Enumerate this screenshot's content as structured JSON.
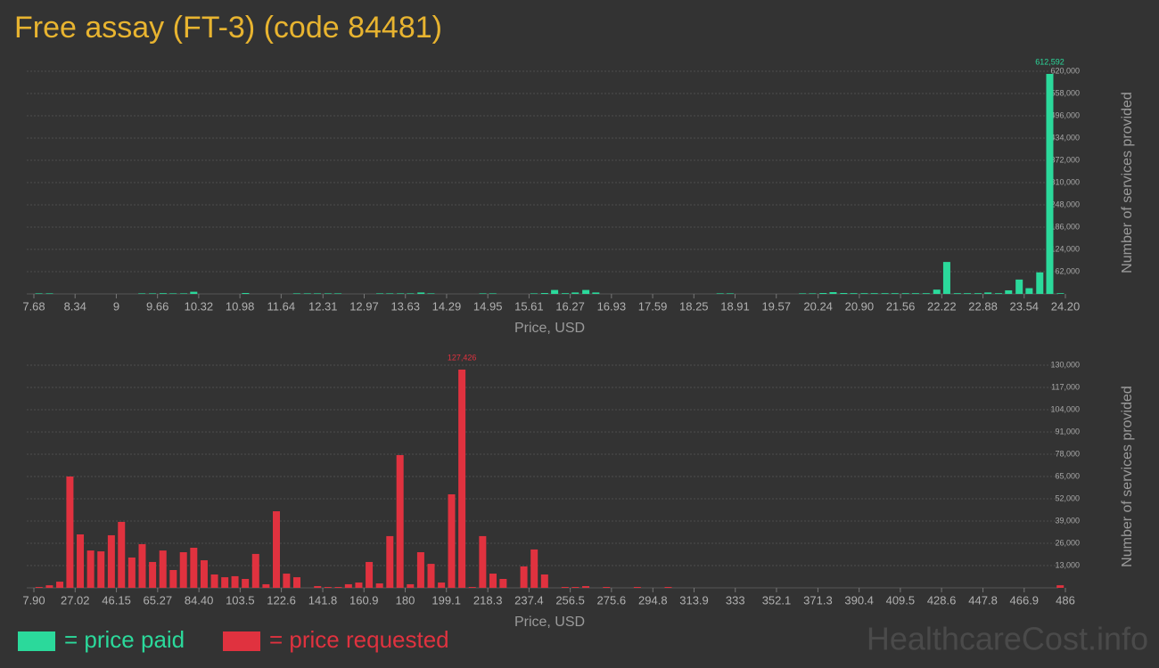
{
  "chart_data": [
    {
      "type": "bar",
      "title": "Free assay (FT-3) (code 84481)",
      "x_label": "Price, USD",
      "y_label": "Number of services provided",
      "xlim": [
        7.68,
        24.2
      ],
      "ylim": [
        0,
        620000
      ],
      "grid": true,
      "xticks": [
        7.68,
        8.34,
        9,
        9.66,
        10.32,
        10.98,
        11.64,
        12.31,
        12.97,
        13.63,
        14.29,
        14.95,
        15.61,
        16.27,
        16.93,
        17.59,
        18.25,
        18.91,
        19.57,
        20.24,
        {
          "value": 20.9,
          "label": "20.90"
        },
        21.56,
        22.22,
        22.88,
        23.54,
        {
          "value": 24.2,
          "label": "24.20"
        }
      ],
      "yticks": [
        {
          "value": 62000,
          "label": "62,000"
        },
        {
          "value": 124000,
          "label": "124,000"
        },
        {
          "value": 186000,
          "label": "186,000"
        },
        {
          "value": 248000,
          "label": "248,000"
        },
        {
          "value": 310000,
          "label": "310,000"
        },
        {
          "value": 372000,
          "label": "372,000"
        },
        {
          "value": 434000,
          "label": "434,000"
        },
        {
          "value": 496000,
          "label": "496,000"
        },
        {
          "value": 558000,
          "label": "558,000"
        },
        {
          "value": 620000,
          "label": "620,000"
        }
      ],
      "x": [
        7.76,
        7.93,
        9.41,
        9.58,
        9.75,
        9.91,
        10.08,
        10.24,
        11.07,
        11.89,
        12.06,
        12.22,
        12.39,
        12.55,
        13.22,
        13.38,
        13.55,
        13.71,
        13.88,
        14.04,
        14.87,
        15.03,
        15.69,
        15.86,
        16.02,
        16.19,
        16.35,
        16.52,
        16.68,
        18.67,
        18.83,
        19.99,
        20.15,
        20.32,
        20.48,
        20.65,
        20.81,
        20.98,
        21.14,
        21.31,
        21.47,
        21.64,
        21.8,
        21.97,
        22.14,
        22.3,
        22.47,
        22.63,
        22.8,
        22.96,
        23.13,
        23.29,
        23.46,
        23.62,
        23.79,
        23.95,
        24.12
      ],
      "series": [
        {
          "name": "= price paid",
          "color": "#2bd99b",
          "values": [
            1500,
            1500,
            1500,
            1500,
            2000,
            1500,
            1500,
            6000,
            2500,
            1500,
            1500,
            1500,
            1500,
            1500,
            1500,
            1500,
            1500,
            1500,
            4000,
            1500,
            1500,
            1500,
            1500,
            2500,
            11000,
            2000,
            4000,
            11000,
            4000,
            1500,
            1500,
            1500,
            1500,
            2500,
            5000,
            2500,
            2000,
            2000,
            2000,
            2000,
            2000,
            2000,
            2000,
            2000,
            12000,
            89000,
            2000,
            2000,
            2000,
            4000,
            2000,
            10000,
            40000,
            16000,
            60000,
            612592,
            2000
          ],
          "value_labels": [
            null,
            null,
            null,
            null,
            null,
            null,
            null,
            null,
            null,
            null,
            null,
            null,
            null,
            null,
            null,
            null,
            null,
            null,
            null,
            null,
            null,
            null,
            null,
            null,
            null,
            null,
            null,
            null,
            null,
            null,
            null,
            null,
            null,
            null,
            null,
            null,
            null,
            null,
            null,
            null,
            null,
            null,
            null,
            null,
            null,
            null,
            null,
            null,
            null,
            null,
            null,
            null,
            null,
            null,
            null,
            "612,592",
            null
          ]
        }
      ]
    },
    {
      "type": "bar",
      "x_label": "Price, USD",
      "y_label": "Number of services provided",
      "xlim": [
        7.9,
        486
      ],
      "ylim": [
        0,
        130000
      ],
      "grid": true,
      "xticks": [
        {
          "value": 7.9,
          "label": "7.90"
        },
        27.02,
        46.15,
        65.27,
        {
          "value": 84.4,
          "label": "84.40"
        },
        103.5,
        122.6,
        141.8,
        160.9,
        180,
        199.1,
        218.3,
        237.4,
        256.5,
        275.6,
        294.8,
        313.9,
        333,
        352.1,
        371.3,
        390.4,
        409.5,
        428.6,
        447.8,
        466.9,
        486
      ],
      "yticks": [
        {
          "value": 13000,
          "label": "13,000"
        },
        {
          "value": 26000,
          "label": "26,000"
        },
        {
          "value": 39000,
          "label": "39,000"
        },
        {
          "value": 52000,
          "label": "52,000"
        },
        {
          "value": 65000,
          "label": "65,000"
        },
        {
          "value": 78000,
          "label": "78,000"
        },
        {
          "value": 91000,
          "label": "91,000"
        },
        {
          "value": 104000,
          "label": "104,000"
        },
        {
          "value": 117000,
          "label": "117,000"
        },
        {
          "value": 130000,
          "label": "130,000"
        }
      ],
      "x": [
        10.3,
        15.1,
        19.9,
        24.6,
        29.4,
        34.2,
        39.0,
        43.8,
        48.5,
        53.3,
        58.1,
        62.9,
        67.7,
        72.5,
        77.2,
        82.0,
        86.8,
        91.6,
        96.4,
        101.1,
        105.9,
        110.7,
        115.5,
        120.3,
        125.0,
        129.8,
        139.4,
        144.2,
        149.0,
        153.7,
        158.5,
        163.3,
        168.1,
        172.9,
        177.6,
        182.4,
        187.2,
        192.0,
        196.8,
        201.5,
        206.3,
        211.1,
        215.9,
        220.7,
        225.4,
        235.0,
        239.8,
        244.6,
        254.1,
        258.9,
        263.7,
        273.3,
        287.6,
        301.9,
        483.6
      ],
      "series": [
        {
          "name": "= price requested",
          "color": "#e0323f",
          "values": [
            500,
            1500,
            3600,
            65000,
            31200,
            21800,
            21300,
            30700,
            38500,
            17700,
            25500,
            15100,
            21800,
            10400,
            20800,
            23400,
            16100,
            7800,
            6200,
            6800,
            5200,
            19800,
            2100,
            44700,
            8300,
            6200,
            1000,
            500,
            500,
            2100,
            3100,
            15100,
            2600,
            30200,
            77500,
            2100,
            20800,
            14000,
            3100,
            54600,
            127426,
            500,
            30200,
            8300,
            5200,
            12500,
            22400,
            7800,
            500,
            500,
            1000,
            500,
            500,
            500,
            1500
          ],
          "value_labels": [
            null,
            null,
            null,
            null,
            null,
            null,
            null,
            null,
            null,
            null,
            null,
            null,
            null,
            null,
            null,
            null,
            null,
            null,
            null,
            null,
            null,
            null,
            null,
            null,
            null,
            null,
            null,
            null,
            null,
            null,
            null,
            null,
            null,
            null,
            null,
            null,
            null,
            null,
            null,
            null,
            "127,426",
            null,
            null,
            null,
            null,
            null,
            null,
            null,
            null,
            null,
            null,
            null,
            null,
            null,
            null
          ]
        }
      ]
    }
  ],
  "watermark": "HealthcareCost.info"
}
